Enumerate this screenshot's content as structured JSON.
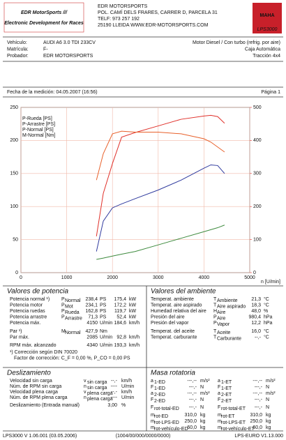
{
  "header": {
    "logo_title": "EDR MotorSports ///",
    "logo_subtitle": "Electronic Development for Races",
    "company": [
      "EDR MOTORSPORTS",
      "POL. CAMÍ DELS FRARES, CARRER D, PARCELA 31",
      "TELF: 973 257 192",
      "25190 LLEIDA    WWW.EDR-MOTORSPORTS.COM"
    ],
    "brand": "MAHA",
    "model": "LPS3000"
  },
  "vehicle": {
    "rows": [
      {
        "label": "Vehículo:",
        "value": "AUDI A6 3.0 TDI 233CV",
        "right": "Motor Diesel / Con turbo (refrig. por aire)"
      },
      {
        "label": "Matrícula:",
        "value": "F-",
        "right": "Caja Automática"
      },
      {
        "label": "Probador:",
        "value": "EDR MOTORSPORTS",
        "right": "Tracción 4x4"
      }
    ]
  },
  "date": "Fecha de la medición: 04.05.2007 (16:56)",
  "page": "Página 1",
  "chart_data": {
    "type": "line",
    "x_label": "n [U/min]",
    "x": [
      1650,
      1800,
      2000,
      2200,
      2500,
      3000,
      3500,
      4000,
      4150,
      4300,
      4450
    ],
    "series": [
      {
        "name": "P-Rueda [PS]",
        "color": "#2f3a9e",
        "values": [
          32,
          78,
          98,
          104,
          112,
          125,
          140,
          158,
          163,
          162,
          150
        ]
      },
      {
        "name": "P-Arrastre [PS]",
        "color": "#3d8a3d",
        "values": [
          20,
          22,
          25,
          28,
          32,
          42,
          52,
          62,
          65,
          68,
          72
        ]
      },
      {
        "name": "P-Normal [PS]",
        "color": "#e0302a",
        "values": [
          55,
          120,
          165,
          205,
          212,
          222,
          232,
          237,
          238,
          236,
          226
        ]
      },
      {
        "name": "M-Normal [Nm]",
        "color": "#e8602a",
        "axis": "y2",
        "values": [
          280,
          360,
          420,
          428,
          425,
          425,
          420,
          405,
          395,
          380,
          365
        ]
      }
    ],
    "xlim": [
      0,
      5000
    ],
    "xticks": [
      0,
      1000,
      2000,
      3000,
      4000,
      5000
    ],
    "ylim": [
      0,
      250
    ],
    "yticks": [
      0,
      50,
      100,
      150,
      200,
      250
    ],
    "y2lim": [
      0,
      500
    ],
    "y2ticks": [
      0,
      100,
      200,
      300,
      400,
      500
    ],
    "y2_color": "#e0302a",
    "grid": true,
    "legend": "upper left"
  },
  "power": {
    "title": "Valores de potencia",
    "rows": [
      {
        "label": "Potencia normal ¹)",
        "sym": "P",
        "sub": "Normal",
        "value": "238,4",
        "unit": "PS",
        "value2": "175,4",
        "unit2": "kW",
        "color": "#d8281f"
      },
      {
        "label": "Potencia motor",
        "sym": "P",
        "sub": "Mot",
        "value": "234,1",
        "unit": "PS",
        "value2": "172,2",
        "unit2": "kW",
        "color": "#d8281f"
      },
      {
        "label": "Potencia ruedas",
        "sym": "P",
        "sub": "Rueda",
        "value": "162,8",
        "unit": "PS",
        "value2": "119,7",
        "unit2": "kW",
        "color": "#d8281f"
      },
      {
        "label": "Potencia arrastre",
        "sym": "P",
        "sub": "Arrastre",
        "value": "71,3",
        "unit": "PS",
        "value2": "52,4",
        "unit2": "kW",
        "color": "#3d8a3d"
      },
      {
        "label": "Potencia máx.",
        "value": "4150",
        "unit": "U/min",
        "value2": "184,6",
        "unit2": "km/h",
        "color": "#111111"
      },
      {
        "label": "Par ¹)",
        "sym": "M",
        "sub": "Normal",
        "value": "427,9",
        "unit": "Nm",
        "color": "#d8281f"
      },
      {
        "label": "Par máx.",
        "value": "2085",
        "unit": "U/min",
        "value2": "92,8",
        "unit2": "km/h",
        "color": "#111111"
      },
      {
        "label": "RPM máx. alcanzado",
        "value": "4340",
        "unit": "U/min",
        "value2": "193,3",
        "unit2": "km/h",
        "color": "#111111"
      }
    ],
    "notes": [
      "¹) Corrección según DIN 70020",
      "Factor de corrección: C_F = 0,00 %, P_CO = 0,00 PS"
    ],
    "notes_color": "#d8281f"
  },
  "ambient": {
    "title": "Valores del ambiente",
    "rows": [
      {
        "label": "Temperat. ambiente",
        "sym": "T",
        "sub": "Ambiente",
        "value": "21,3",
        "unit": "°C"
      },
      {
        "label": "Temperat. aire aspirado",
        "sym": "T",
        "sub": "Aire aspirado",
        "value": "18,3",
        "unit": "°C"
      },
      {
        "label": "Humedad relativa del aire",
        "sym": "H",
        "sub": "Aire",
        "value": "48,0",
        "unit": "%"
      },
      {
        "label": "Presión del aire",
        "sym": "P",
        "sub": "Aire",
        "value": "980,4",
        "unit": "hPa"
      },
      {
        "label": "Presión del vapor",
        "sym": "P",
        "sub": "Vapor",
        "value": "12,2",
        "unit": "hPa"
      },
      {
        "label": "Temperat. del aceite",
        "sym": "T",
        "sub": "Aceite",
        "value": "16,0",
        "unit": "°C"
      },
      {
        "label": "Temperat. carburante",
        "sym": "T",
        "sub": "Carburante",
        "value": "--,-",
        "unit": "°C"
      }
    ]
  },
  "slip": {
    "title": "Deslizamiento",
    "rows": [
      {
        "label": "Velocidad sin carga",
        "sym": "v",
        "sub": "sin carga",
        "value": "--,-",
        "unit": "km/h"
      },
      {
        "label": "Núm. de RPM sin carga",
        "sym": "n",
        "sub": "sin carga",
        "value": "----",
        "unit": "U/min"
      },
      {
        "label": "Velocidad plena carga",
        "sym": "v",
        "sub": "plena carga",
        "value": "--,-",
        "unit": "km/h"
      },
      {
        "label": "Núm. de RPM plena carga",
        "sym": "n",
        "sub": "plena carga",
        "value": "----",
        "unit": "U/min"
      },
      {
        "label": "Deslizamiento (Entrada manual)",
        "value": "3,00",
        "unit": "%"
      }
    ]
  },
  "rotating": {
    "title": "Masa rotatoria",
    "rows": [
      {
        "sym": "a",
        "sub": "1-ED",
        "value": "---,--",
        "unit": "m/s²",
        "sym2": "a",
        "sub2": "1-ET",
        "value2": "---,--",
        "unit2": "m/s²"
      },
      {
        "sym": "F",
        "sub": "1-ED",
        "value": "---,-",
        "unit": "N",
        "sym2": "F",
        "sub2": "1-ET",
        "value2": "---,-",
        "unit2": "N"
      },
      {
        "sym": "a",
        "sub": "2-ED",
        "value": "---,--",
        "unit": "m/s²",
        "sym2": "a",
        "sub2": "2-ET",
        "value2": "---,--",
        "unit2": "m/s²"
      },
      {
        "sym": "F",
        "sub": "2-ED",
        "value": "---,-",
        "unit": "N",
        "sym2": "F",
        "sub2": "2-ET",
        "value2": "---,-",
        "unit2": "N"
      },
      {
        "sym": "F",
        "sub": "rot-total-ED",
        "value": "---,-",
        "unit": "N",
        "sym2": "F",
        "sub2": "rot-total-ET",
        "value2": "---,-",
        "unit2": "N"
      },
      {
        "sym": "m",
        "sub": "rot-ED",
        "value": "310,0",
        "unit": "kg",
        "sym2": "m",
        "sub2": "rot-ET",
        "value2": "310,0",
        "unit2": "kg"
      },
      {
        "sym": "m",
        "sub": "rot-LPS-ED",
        "value": "250,0",
        "unit": "kg",
        "sym2": "m",
        "sub2": "rot-LPS-ET",
        "value2": "250,0",
        "unit2": "kg"
      },
      {
        "sym": "m",
        "sub": "rot-vehículo-ED",
        "value": "60,0",
        "unit": "kg",
        "sym2": "m",
        "sub2": "rot-vehículo-ET",
        "value2": "60,0",
        "unit2": "kg"
      }
    ]
  },
  "footer": [
    "LPS3000 V 1.06.001 (03.05.2006)",
    "(1004/00/000/0000/0000)",
    "LPS-EURO V1.13.000"
  ]
}
